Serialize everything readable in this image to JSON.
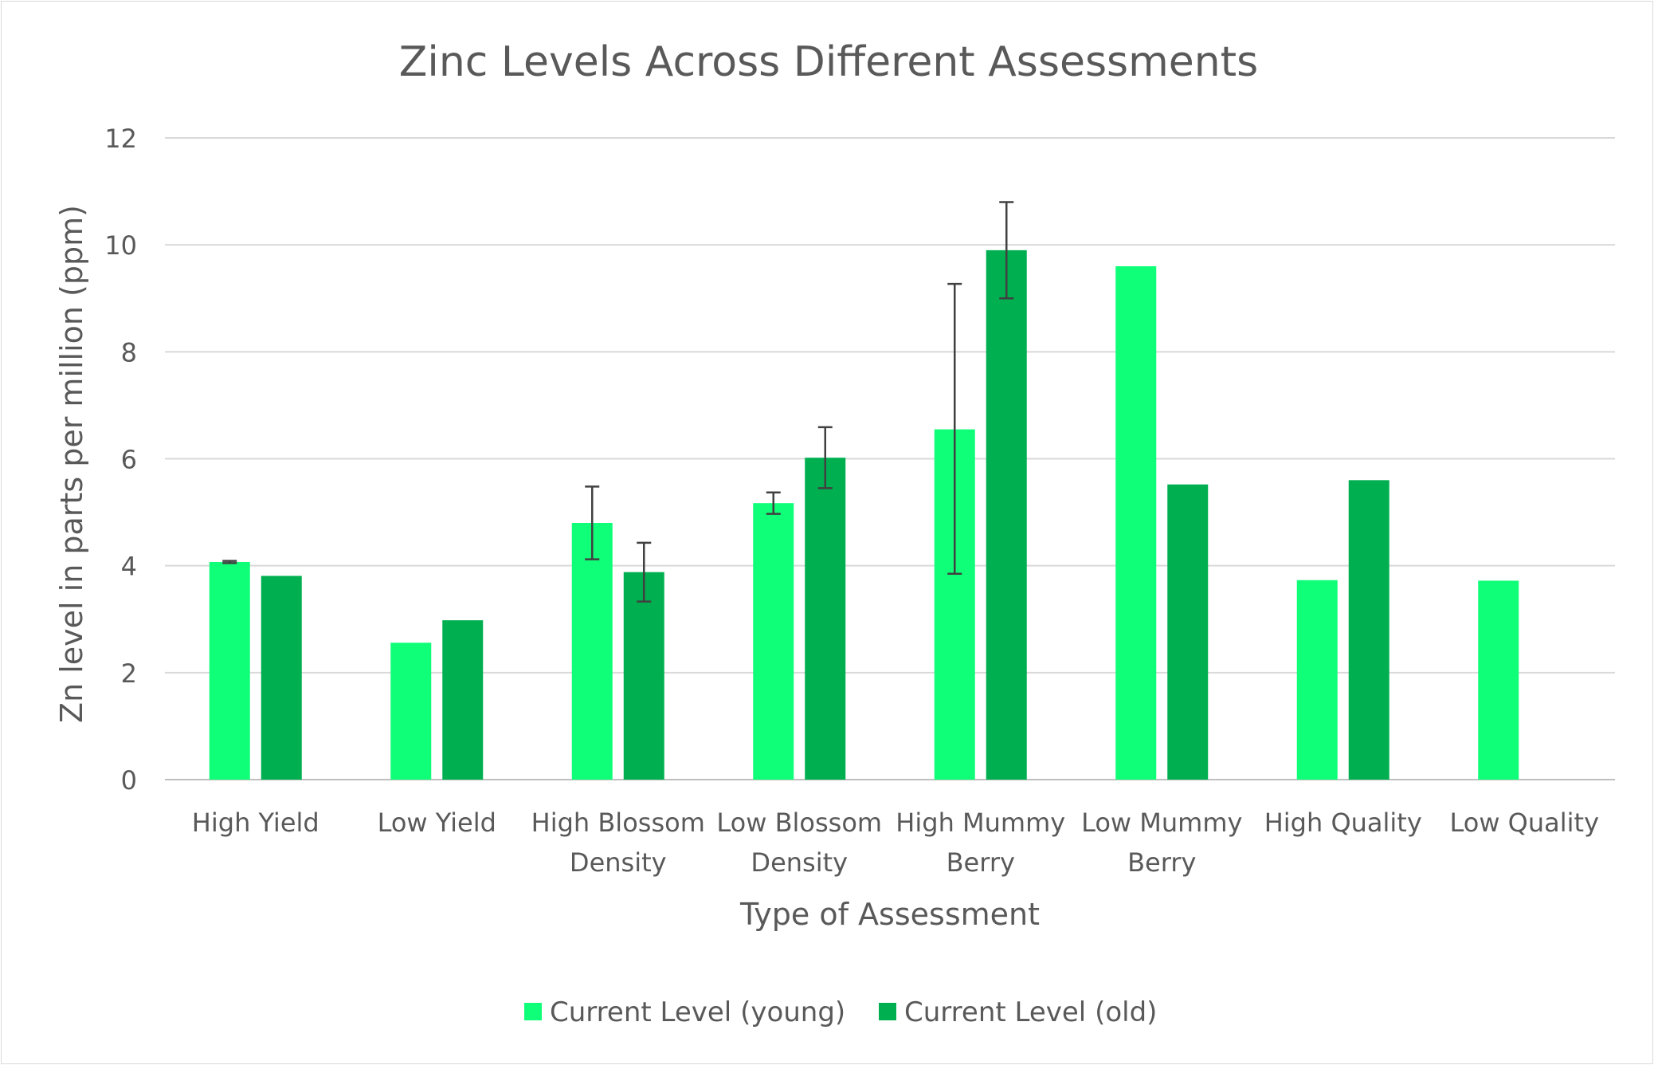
{
  "chart_data": {
    "type": "bar",
    "title": "Zinc Levels Across Different Assessments",
    "xlabel": "Type of Assessment",
    "ylabel": "Zn level in parts per million (ppm)",
    "ylim": [
      0,
      12
    ],
    "yticks": [
      0,
      2,
      4,
      6,
      8,
      10,
      12
    ],
    "grid": true,
    "legend_position": "bottom",
    "categories": [
      [
        "High Yield"
      ],
      [
        "Low Yield"
      ],
      [
        "High Blossom",
        "Density"
      ],
      [
        "Low Blossom",
        "Density"
      ],
      [
        "High Mummy",
        "Berry"
      ],
      [
        "Low Mummy",
        "Berry"
      ],
      [
        "High Quality"
      ],
      [
        "Low Quality"
      ]
    ],
    "series": [
      {
        "name": "Current Level (young)",
        "color": "#10FF78",
        "values": [
          4.07,
          2.56,
          4.8,
          5.17,
          6.55,
          9.6,
          3.73,
          3.72
        ],
        "error_low": [
          0.02,
          null,
          0.68,
          0.2,
          2.7,
          null,
          null,
          null
        ],
        "error_high": [
          0.02,
          null,
          0.68,
          0.2,
          2.72,
          null,
          null,
          null
        ]
      },
      {
        "name": "Current Level (old)",
        "color": "#00B050",
        "values": [
          3.81,
          2.98,
          3.88,
          6.02,
          9.9,
          5.52,
          5.6,
          null
        ],
        "error_low": [
          null,
          null,
          0.55,
          0.57,
          0.9,
          null,
          null,
          null
        ],
        "error_high": [
          null,
          null,
          0.55,
          0.57,
          0.9,
          null,
          null,
          null
        ]
      }
    ]
  }
}
